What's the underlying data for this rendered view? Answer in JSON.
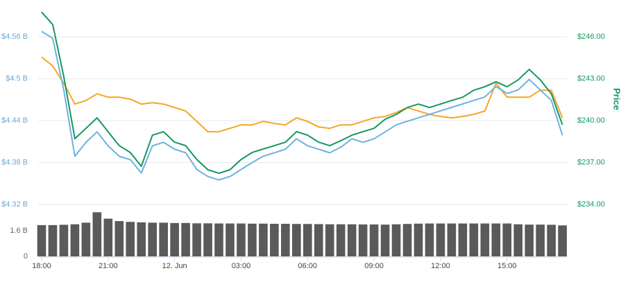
{
  "chart_data": {
    "type": "line",
    "y2label": "Price",
    "x": [
      0,
      0.5,
      1,
      1.5,
      2,
      2.5,
      3,
      3.5,
      4,
      4.5,
      5,
      5.5,
      6,
      6.5,
      7,
      7.5,
      8,
      8.5,
      9,
      9.5,
      10,
      10.5,
      11,
      11.5,
      12,
      12.5,
      13,
      13.5,
      14,
      14.5,
      15,
      15.5,
      16,
      16.5,
      17,
      17.5,
      18,
      18.5,
      19,
      19.5,
      20,
      20.5,
      21,
      21.5,
      22,
      22.5,
      23,
      23.5
    ],
    "xlim": [
      0,
      23.7
    ],
    "xticks": [
      {
        "value": 0,
        "label": "18:00"
      },
      {
        "value": 3,
        "label": "21:00"
      },
      {
        "value": 6,
        "label": "12. Jun"
      },
      {
        "value": 9,
        "label": "03:00"
      },
      {
        "value": 12,
        "label": "06:00"
      },
      {
        "value": 15,
        "label": "09:00"
      },
      {
        "value": 18,
        "label": "12:00"
      },
      {
        "value": 21,
        "label": "15:00"
      }
    ],
    "ylim": [
      4.32,
      4.6
    ],
    "yticks": [
      {
        "value": 4.32,
        "label": "$4.32 B"
      },
      {
        "value": 4.38,
        "label": "$4.38 B"
      },
      {
        "value": 4.44,
        "label": "$4.44 B"
      },
      {
        "value": 4.5,
        "label": "$4.5 B"
      },
      {
        "value": 4.56,
        "label": "$4.56 B"
      }
    ],
    "y2lim": [
      234,
      248
    ],
    "y2ticks": [
      {
        "value": 234,
        "label": "$234.00"
      },
      {
        "value": 237,
        "label": "$237.00"
      },
      {
        "value": 240,
        "label": "$240.00"
      },
      {
        "value": 243,
        "label": "$243.00"
      },
      {
        "value": 246,
        "label": "$246.00"
      }
    ],
    "grid": true,
    "series": [
      {
        "color": "#6cb2e0",
        "axis": "y",
        "values": [
          4.568,
          4.558,
          4.484,
          4.389,
          4.409,
          4.424,
          4.404,
          4.389,
          4.384,
          4.365,
          4.404,
          4.409,
          4.399,
          4.394,
          4.37,
          4.36,
          4.355,
          4.36,
          4.37,
          4.38,
          4.389,
          4.394,
          4.399,
          4.414,
          4.404,
          4.399,
          4.394,
          4.402,
          4.414,
          4.409,
          4.414,
          4.424,
          4.434,
          4.439,
          4.444,
          4.449,
          4.454,
          4.459,
          4.464,
          4.469,
          4.474,
          4.489,
          4.479,
          4.484,
          4.499,
          4.484,
          4.469,
          4.419
        ]
      },
      {
        "color": "#16965f",
        "axis": "y2",
        "values": [
          247.78,
          246.89,
          243.17,
          238.71,
          239.45,
          240.2,
          239.21,
          238.21,
          237.72,
          236.73,
          238.96,
          239.21,
          238.46,
          238.21,
          237.22,
          236.48,
          236.23,
          236.48,
          237.22,
          237.72,
          237.97,
          238.21,
          238.46,
          239.21,
          238.96,
          238.46,
          238.21,
          238.56,
          238.96,
          239.21,
          239.45,
          240.1,
          240.45,
          240.94,
          241.19,
          240.94,
          241.19,
          241.44,
          241.68,
          242.18,
          242.43,
          242.78,
          242.43,
          242.92,
          243.67,
          242.92,
          241.93,
          239.7
        ]
      },
      {
        "color": "#f5a623",
        "axis": "y2",
        "values": [
          244.56,
          243.92,
          242.68,
          241.19,
          241.44,
          241.93,
          241.68,
          241.68,
          241.54,
          241.19,
          241.29,
          241.19,
          240.94,
          240.69,
          239.95,
          239.21,
          239.21,
          239.45,
          239.7,
          239.7,
          239.95,
          239.8,
          239.7,
          240.2,
          239.95,
          239.55,
          239.45,
          239.7,
          239.7,
          239.95,
          240.2,
          240.3,
          240.59,
          240.94,
          240.69,
          240.45,
          240.3,
          240.2,
          240.3,
          240.45,
          240.69,
          242.68,
          241.68,
          241.68,
          241.68,
          242.18,
          242.18,
          240.2
        ]
      }
    ],
    "volume": {
      "color": "#5a5a5a",
      "ylim": [
        0,
        3.24
      ],
      "yticks": [
        0,
        {
          "value": 1.6,
          "label": "1.6 B"
        }
      ],
      "values": [
        1.95,
        1.95,
        1.97,
        2.0,
        2.1,
        2.75,
        2.35,
        2.2,
        2.15,
        2.12,
        2.1,
        2.1,
        2.08,
        2.08,
        2.06,
        2.06,
        2.05,
        2.05,
        2.05,
        2.04,
        2.04,
        2.03,
        2.03,
        2.02,
        2.02,
        2.01,
        2.0,
        2.0,
        2.0,
        1.99,
        1.99,
        1.98,
        2.0,
        2.02,
        2.04,
        2.05,
        2.05,
        2.05,
        2.05,
        2.05,
        2.05,
        2.05,
        2.05,
        2.0,
        1.98,
        1.98,
        1.97,
        1.93
      ]
    }
  }
}
